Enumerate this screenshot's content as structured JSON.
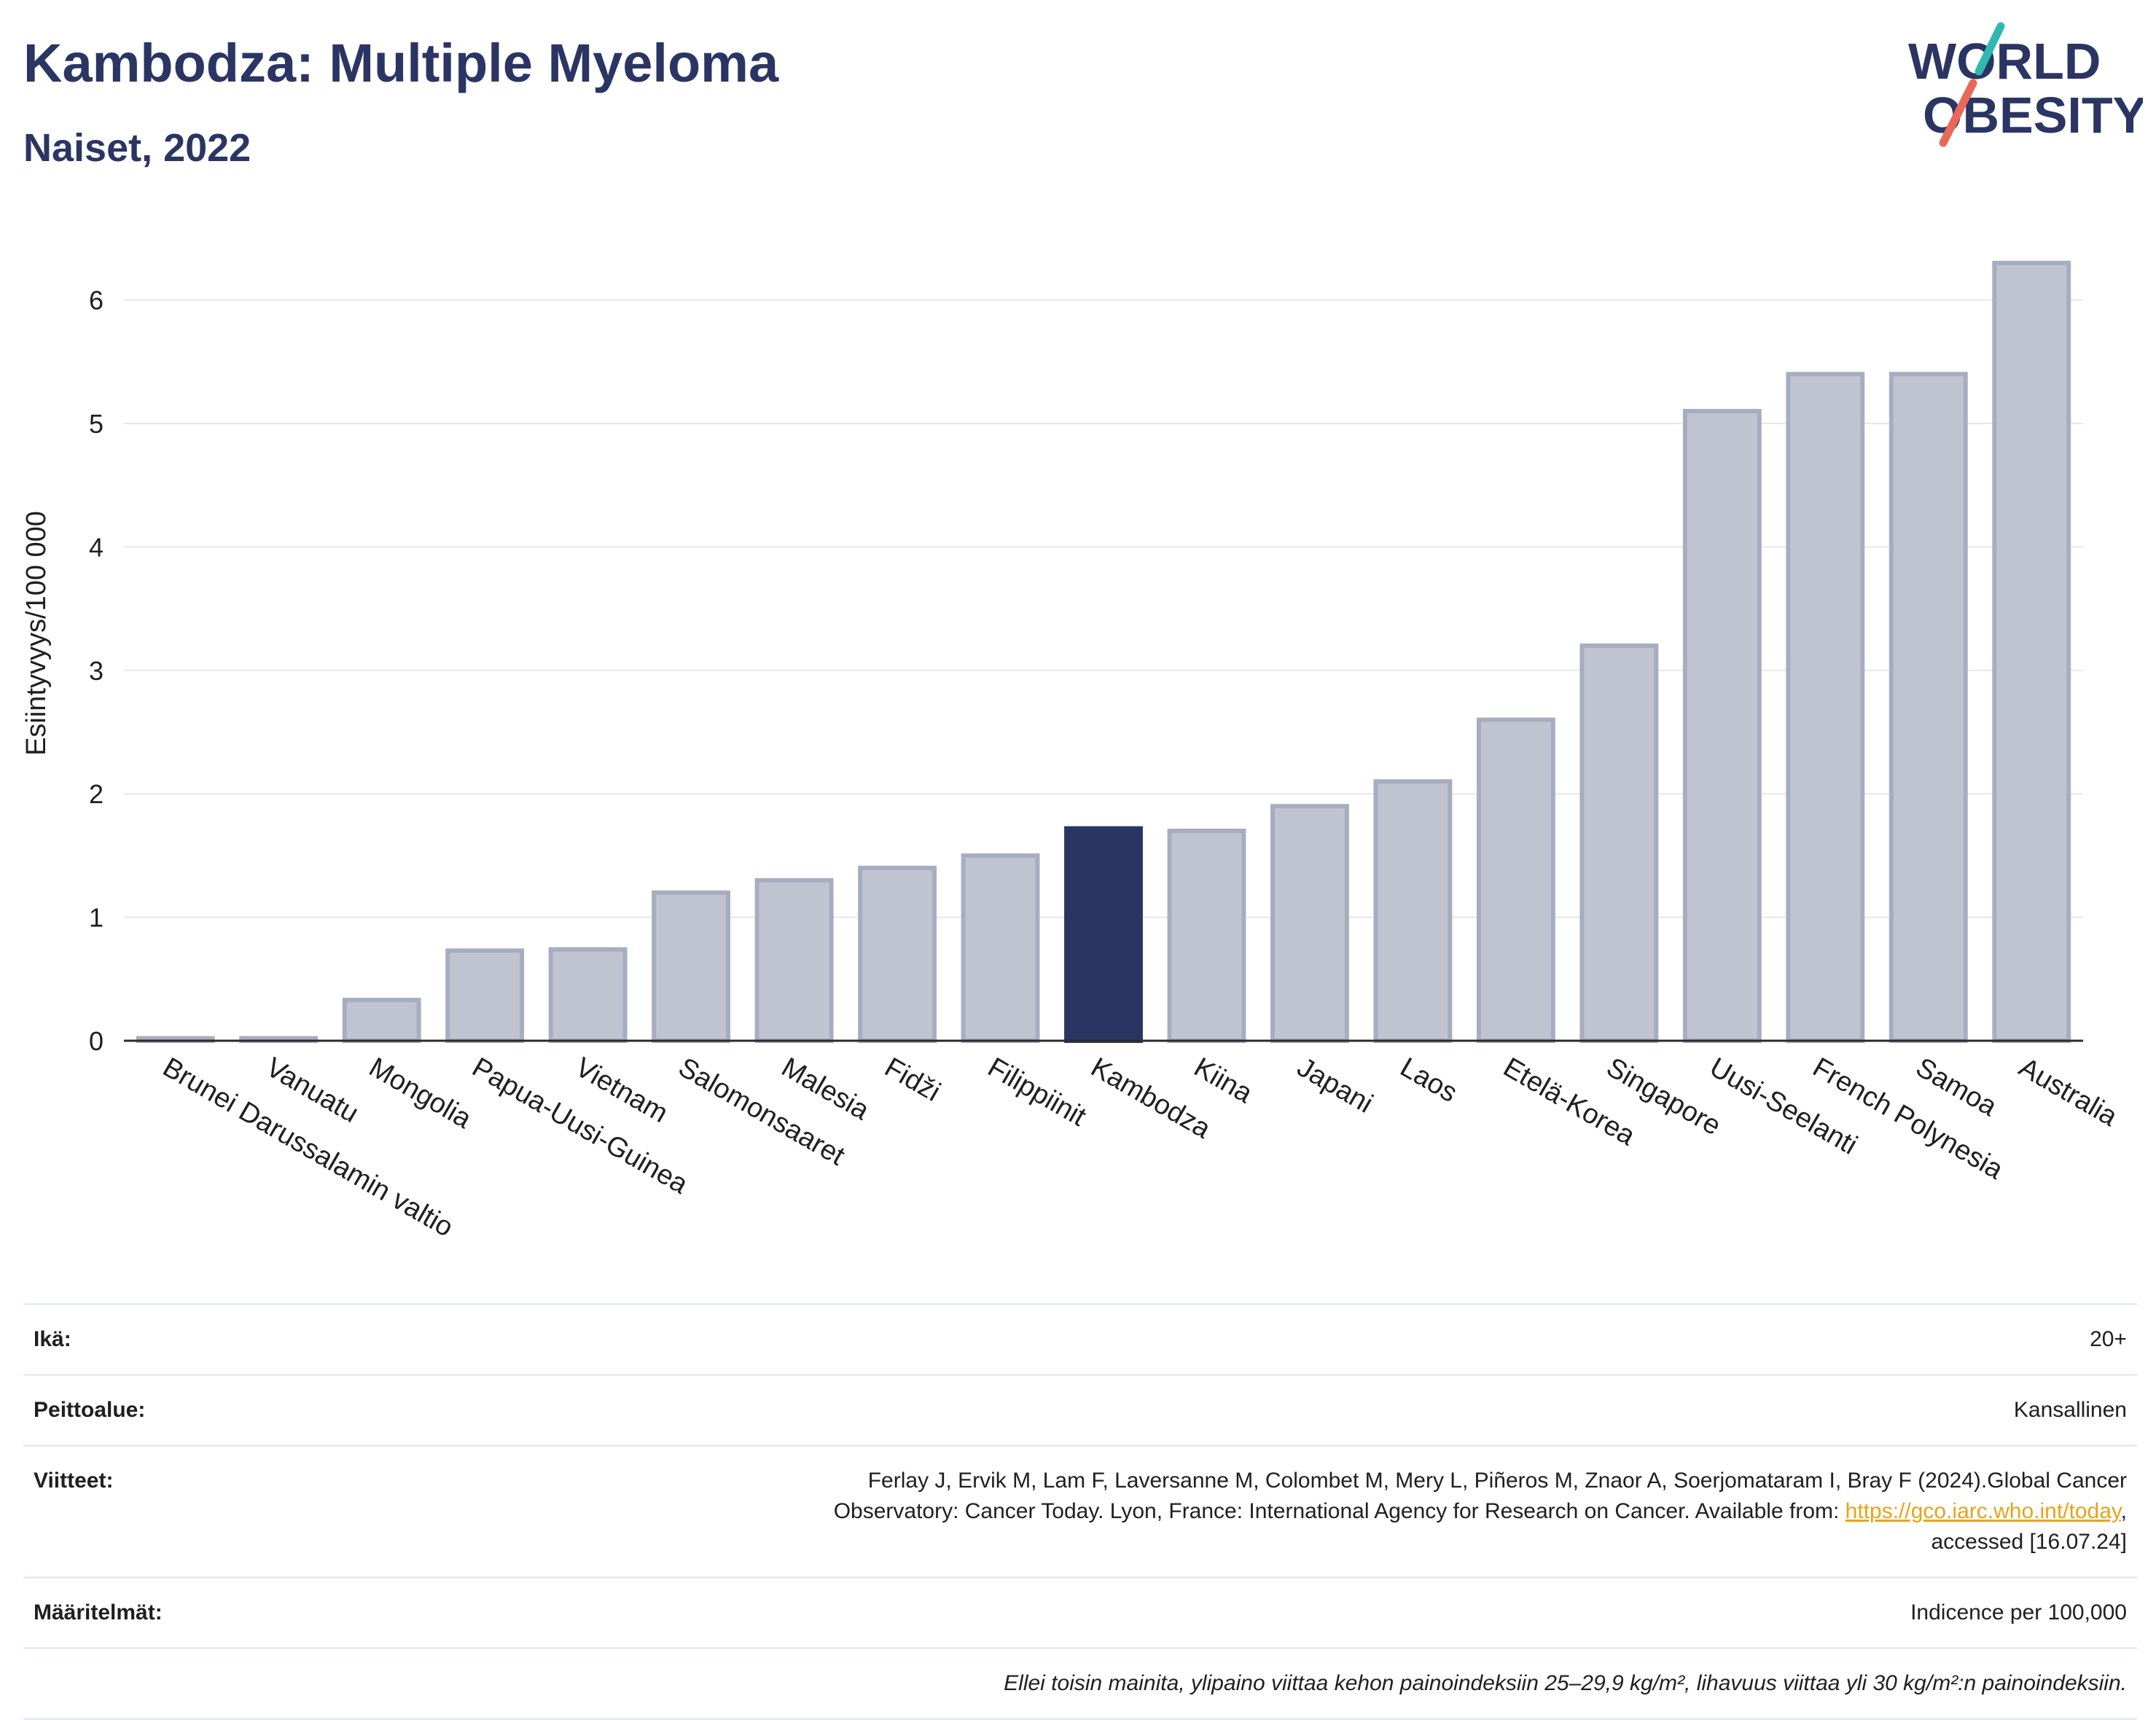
{
  "header": {
    "title": "Kambodza: Multiple Myeloma",
    "subtitle": "Naiset, 2022",
    "logo_line1": "WORLD",
    "logo_line2": "OBESITY"
  },
  "colors": {
    "bar": "#c0c4d1",
    "bar_border": "#a7adc1",
    "highlight": "#2a3563",
    "title": "#2a3563",
    "link": "#e8a317"
  },
  "chart_data": {
    "type": "bar",
    "ylabel": "Esiintyvyys/100 000",
    "ylim": [
      0,
      6.6
    ],
    "yticks": [
      0,
      1,
      2,
      3,
      4,
      5,
      6
    ],
    "grid": true,
    "highlight": "Kambodza",
    "categories": [
      "Brunei Darussalamin valtio",
      "Vanuatu",
      "Mongolia",
      "Papua-Uusi-Guinea",
      "Vietnam",
      "Salomonsaaret",
      "Malesia",
      "Fidži",
      "Filippiinit",
      "Kambodza",
      "Kiina",
      "Japani",
      "Laos",
      "Etelä-Korea",
      "Singapore",
      "Uusi-Seelanti",
      "French Polynesia",
      "Samoa",
      "Australia"
    ],
    "values": [
      0.02,
      0.02,
      0.33,
      0.73,
      0.74,
      1.2,
      1.3,
      1.4,
      1.5,
      1.72,
      1.7,
      1.9,
      2.1,
      2.6,
      3.2,
      5.1,
      5.4,
      5.4,
      6.3
    ]
  },
  "info": {
    "age_label": "Ikä:",
    "age_value": "20+",
    "coverage_label": "Peittoalue:",
    "coverage_value": "Kansallinen",
    "refs_label": "Viitteet:",
    "refs_line1": "Ferlay J, Ervik M, Lam F, Laversanne M, Colombet M, Mery L, Piñeros M, Znaor A, Soerjomataram I, Bray F (2024).Global Cancer",
    "refs_line2": "Observatory: Cancer Today. Lyon, France: International Agency for Research on Cancer. Available from: ",
    "refs_link": "https://gco.iarc.who.int/today",
    "refs_line2_end": ",",
    "refs_line3": "accessed [16.07.24]",
    "defs_label": "Määritelmät:",
    "defs_value": "Indicence per 100,000",
    "note": "Ellei toisin mainita, ylipaino viittaa kehon painoindeksiin 25–29,9 kg/m², lihavuus viittaa yli 30 kg/m²:n painoindeksiin."
  }
}
